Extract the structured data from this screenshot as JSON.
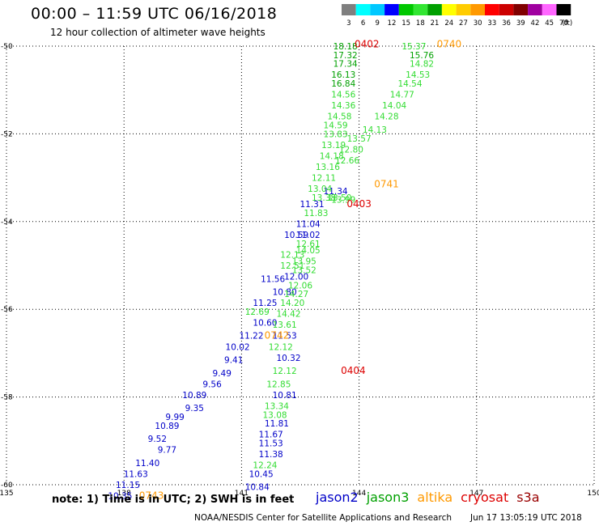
{
  "header": {
    "title": "00:00 – 11:59 UTC 06/16/2018",
    "subtitle": "12 hour collection of altimeter wave heights"
  },
  "color_scale": {
    "labels": [
      "3",
      "6",
      "9",
      "12",
      "15",
      "18",
      "21",
      "24",
      "27",
      "30",
      "33",
      "36",
      "39",
      "42",
      "45",
      "70"
    ],
    "unit": "(ft)",
    "colors": [
      "#7f7f7f",
      "#00ffff",
      "#00c8ff",
      "#0000ff",
      "#00c800",
      "#32e632",
      "#00a000",
      "#ffff00",
      "#ffcc00",
      "#ff9900",
      "#ff0000",
      "#cc0000",
      "#800000",
      "#a000a0",
      "#ff66ff",
      "#000000"
    ]
  },
  "footer": {
    "note": "note: 1) Time is in UTC; 2) SWH is in feet",
    "credit": "NOAA/NESDIS Center for Satellite Applications and Research",
    "timestamp": "Jun 17 13:05:19 UTC 2018"
  },
  "legend": [
    {
      "label": "jason2",
      "color": "#0000c8"
    },
    {
      "label": "jason3",
      "color": "#00a000"
    },
    {
      "label": "altika",
      "color": "#ff9900"
    },
    {
      "label": "cryosat",
      "color": "#dd0000"
    },
    {
      "label": "s3a",
      "color": "#990000"
    }
  ],
  "chart_data": {
    "type": "scatter",
    "title": "00:00 – 11:59 UTC 06/16/2018",
    "xlim": [
      135,
      150
    ],
    "ylim": [
      -60,
      -50
    ],
    "x_ticks": [
      135,
      138,
      141,
      144,
      147,
      150
    ],
    "y_ticks": [
      -50,
      -52,
      -54,
      -56,
      -58,
      -60
    ],
    "grid": true,
    "series": [
      {
        "name": "jason2",
        "color": "#0000c8",
        "points": [
          {
            "lon": 143.4,
            "lat": -53.3,
            "v": "11.34"
          },
          {
            "lon": 142.8,
            "lat": -53.6,
            "v": "11.31"
          },
          {
            "lon": 142.7,
            "lat": -54.05,
            "v": "11.04"
          },
          {
            "lon": 142.4,
            "lat": -54.3,
            "v": "10.59"
          },
          {
            "lon": 142.7,
            "lat": -54.3,
            "v": "11.02"
          },
          {
            "lon": 142.4,
            "lat": -55.25,
            "v": "12.00"
          },
          {
            "lon": 141.8,
            "lat": -55.3,
            "v": "11.56"
          },
          {
            "lon": 142.1,
            "lat": -55.6,
            "v": "10.80"
          },
          {
            "lon": 141.6,
            "lat": -55.85,
            "v": "11.25"
          },
          {
            "lon": 141.6,
            "lat": -56.3,
            "v": "10.60"
          },
          {
            "lon": 141.25,
            "lat": -56.6,
            "v": "11.22"
          },
          {
            "lon": 142.1,
            "lat": -56.6,
            "v": "11.53"
          },
          {
            "lon": 140.9,
            "lat": -56.85,
            "v": "10.02"
          },
          {
            "lon": 140.8,
            "lat": -57.15,
            "v": "9.41"
          },
          {
            "lon": 142.2,
            "lat": -57.1,
            "v": "10.32"
          },
          {
            "lon": 140.5,
            "lat": -57.45,
            "v": "9.49"
          },
          {
            "lon": 140.25,
            "lat": -57.7,
            "v": "9.56"
          },
          {
            "lon": 139.8,
            "lat": -57.95,
            "v": "10.89"
          },
          {
            "lon": 142.1,
            "lat": -57.95,
            "v": "10.81"
          },
          {
            "lon": 139.8,
            "lat": -58.25,
            "v": "9.35"
          },
          {
            "lon": 139.3,
            "lat": -58.45,
            "v": "9.99"
          },
          {
            "lon": 139.1,
            "lat": -58.65,
            "v": "10.89"
          },
          {
            "lon": 141.9,
            "lat": -58.6,
            "v": "11.81"
          },
          {
            "lon": 141.75,
            "lat": -58.85,
            "v": "11.67"
          },
          {
            "lon": 138.85,
            "lat": -58.95,
            "v": "9.52"
          },
          {
            "lon": 141.75,
            "lat": -59.05,
            "v": "11.53"
          },
          {
            "lon": 139.1,
            "lat": -59.2,
            "v": "9.77"
          },
          {
            "lon": 141.75,
            "lat": -59.3,
            "v": "11.38"
          },
          {
            "lon": 138.6,
            "lat": -59.5,
            "v": "11.40"
          },
          {
            "lon": 138.3,
            "lat": -59.75,
            "v": "11.63"
          },
          {
            "lon": 141.5,
            "lat": -59.75,
            "v": "10.45"
          },
          {
            "lon": 138.1,
            "lat": -60.0,
            "v": "11.15"
          },
          {
            "lon": 141.4,
            "lat": -60.05,
            "v": "10.84"
          },
          {
            "lon": 137.9,
            "lat": -60.25,
            "v": "10.35"
          }
        ]
      },
      {
        "name": "jason3",
        "color": "#00a000",
        "points": [
          {
            "lon": 143.65,
            "lat": -50.0,
            "v": "18.18"
          },
          {
            "lon": 143.65,
            "lat": -50.2,
            "v": "17.32"
          },
          {
            "lon": 143.65,
            "lat": -50.4,
            "v": "17.34"
          },
          {
            "lon": 143.6,
            "lat": -50.65,
            "v": "16.13"
          },
          {
            "lon": 143.6,
            "lat": -50.85,
            "v": "16.84"
          },
          {
            "lon": 145.6,
            "lat": -50.2,
            "v": "15.76"
          }
        ]
      },
      {
        "name": "jason3-light",
        "color": "#32dc32",
        "points": [
          {
            "lon": 145.4,
            "lat": -50.0,
            "v": "15.37"
          },
          {
            "lon": 145.6,
            "lat": -50.4,
            "v": "14.82"
          },
          {
            "lon": 145.5,
            "lat": -50.65,
            "v": "14.53"
          },
          {
            "lon": 145.3,
            "lat": -50.85,
            "v": "14.54"
          },
          {
            "lon": 145.1,
            "lat": -51.1,
            "v": "14.77"
          },
          {
            "lon": 144.9,
            "lat": -51.35,
            "v": "14.04"
          },
          {
            "lon": 144.7,
            "lat": -51.6,
            "v": "14.28"
          },
          {
            "lon": 144.4,
            "lat": -51.9,
            "v": "14.13"
          },
          {
            "lon": 143.6,
            "lat": -51.1,
            "v": "14.56"
          },
          {
            "lon": 143.6,
            "lat": -51.35,
            "v": "14.36"
          },
          {
            "lon": 143.5,
            "lat": -51.6,
            "v": "14.58"
          },
          {
            "lon": 143.4,
            "lat": -51.8,
            "v": "14.59"
          },
          {
            "lon": 143.4,
            "lat": -52.0,
            "v": "13.83"
          },
          {
            "lon": 144.0,
            "lat": -52.1,
            "v": "13.57"
          },
          {
            "lon": 143.35,
            "lat": -52.25,
            "v": "13.19"
          },
          {
            "lon": 143.8,
            "lat": -52.35,
            "v": "12.80"
          },
          {
            "lon": 143.3,
            "lat": -52.5,
            "v": "14.18"
          },
          {
            "lon": 143.7,
            "lat": -52.6,
            "v": "12.66"
          },
          {
            "lon": 143.2,
            "lat": -52.75,
            "v": "13.16"
          },
          {
            "lon": 143.1,
            "lat": -53.0,
            "v": "12.11"
          },
          {
            "lon": 143.6,
            "lat": -53.5,
            "v": "13.99"
          },
          {
            "lon": 143.0,
            "lat": -53.25,
            "v": "13.04"
          },
          {
            "lon": 143.1,
            "lat": -53.45,
            "v": "13.38"
          },
          {
            "lon": 143.5,
            "lat": -53.45,
            "v": "13.50"
          },
          {
            "lon": 142.9,
            "lat": -53.8,
            "v": "11.83"
          },
          {
            "lon": 142.7,
            "lat": -54.5,
            "v": "12.61"
          },
          {
            "lon": 142.7,
            "lat": -54.65,
            "v": "14.05"
          },
          {
            "lon": 142.3,
            "lat": -54.75,
            "v": "12.13"
          },
          {
            "lon": 142.6,
            "lat": -54.9,
            "v": "13.95"
          },
          {
            "lon": 142.3,
            "lat": -55.0,
            "v": "12.51"
          },
          {
            "lon": 142.6,
            "lat": -55.1,
            "v": "13.52"
          },
          {
            "lon": 142.5,
            "lat": -55.45,
            "v": "12.06"
          },
          {
            "lon": 142.4,
            "lat": -55.65,
            "v": "14.27"
          },
          {
            "lon": 142.3,
            "lat": -55.85,
            "v": "14.20"
          },
          {
            "lon": 141.4,
            "lat": -56.05,
            "v": "12.69"
          },
          {
            "lon": 142.2,
            "lat": -56.1,
            "v": "14.42"
          },
          {
            "lon": 142.1,
            "lat": -56.35,
            "v": "13.61"
          },
          {
            "lon": 142.0,
            "lat": -56.85,
            "v": "12.12"
          },
          {
            "lon": 142.1,
            "lat": -57.4,
            "v": "12.12"
          },
          {
            "lon": 141.95,
            "lat": -57.7,
            "v": "12.85"
          },
          {
            "lon": 141.9,
            "lat": -58.2,
            "v": "13.34"
          },
          {
            "lon": 141.85,
            "lat": -58.4,
            "v": "13.08"
          },
          {
            "lon": 141.6,
            "lat": -59.55,
            "v": "12.24"
          }
        ]
      }
    ],
    "pass_labels": [
      {
        "lon": 144.2,
        "lat": -49.95,
        "text": "0402",
        "color": "#dd0000"
      },
      {
        "lon": 146.3,
        "lat": -49.95,
        "text": "0740",
        "color": "#ff9900"
      },
      {
        "lon": 144.7,
        "lat": -53.15,
        "text": "0741",
        "color": "#ff9900"
      },
      {
        "lon": 144.0,
        "lat": -53.6,
        "text": "0403",
        "color": "#dd0000"
      },
      {
        "lon": 141.9,
        "lat": -56.6,
        "text": "0742",
        "color": "#ff9900"
      },
      {
        "lon": 143.85,
        "lat": -57.4,
        "text": "0404",
        "color": "#dd0000"
      },
      {
        "lon": 138.7,
        "lat": -60.25,
        "text": "0743",
        "color": "#ff9900"
      }
    ]
  }
}
